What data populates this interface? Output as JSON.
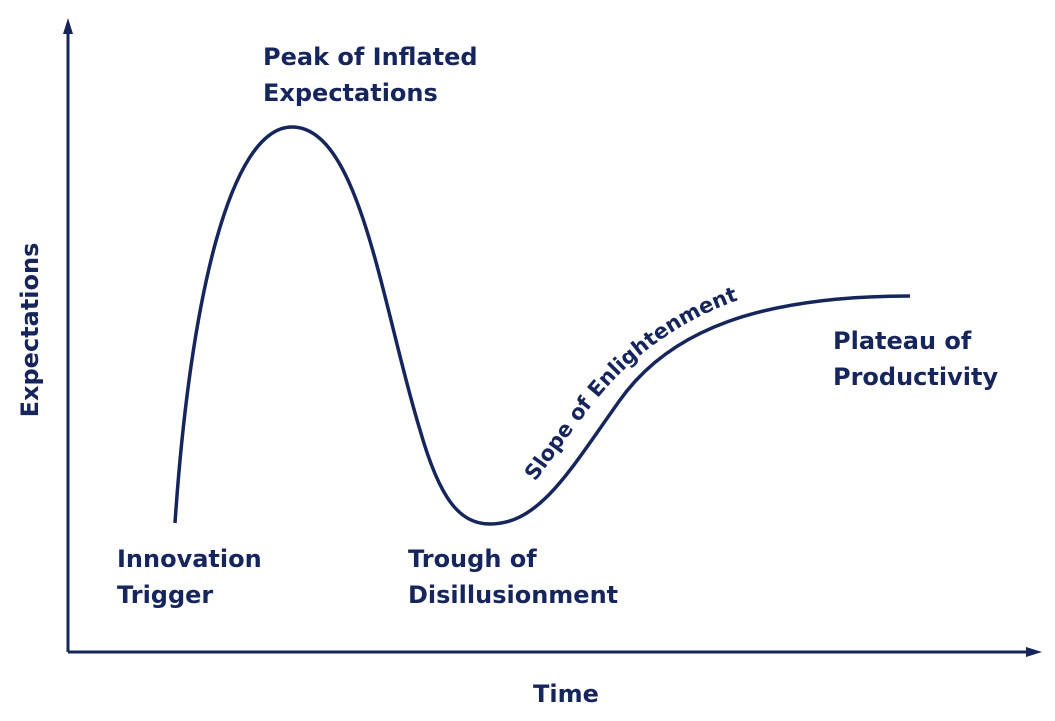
{
  "axes": {
    "y_label": "Expectations",
    "x_label": "Time"
  },
  "phases": [
    {
      "lines": [
        "Innovation",
        "Trigger"
      ]
    },
    {
      "lines": [
        "Peak of Inflated",
        "Expectations"
      ]
    },
    {
      "lines": [
        "Trough of",
        "Disillusionment"
      ]
    },
    {
      "lines": [
        "Slope of Enlightenment"
      ]
    },
    {
      "lines": [
        "Plateau of",
        "Productivity"
      ]
    }
  ]
}
